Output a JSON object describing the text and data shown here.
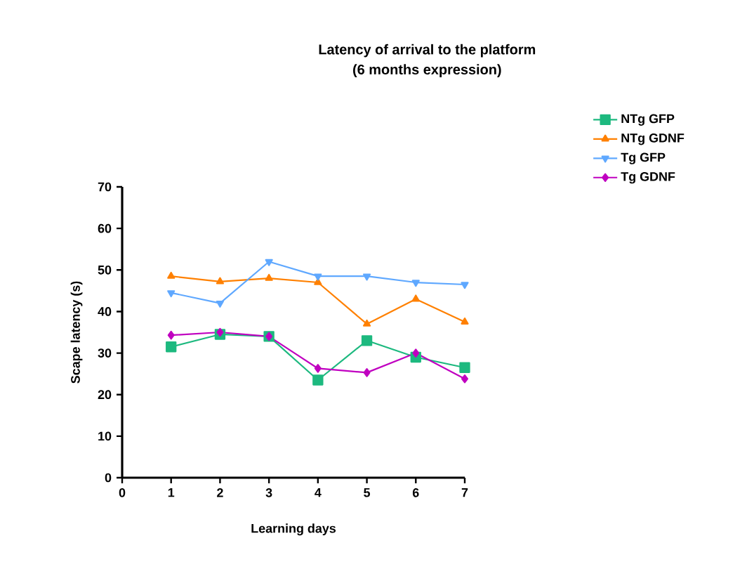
{
  "chart_data": {
    "type": "line",
    "title": "Latency of arrival to the platform",
    "subtitle": "(6 months expression)",
    "xlabel": "Learning days",
    "ylabel": "Scape latency (s)",
    "x": [
      1,
      2,
      3,
      4,
      5,
      6,
      7
    ],
    "xlim": [
      0,
      7
    ],
    "xticks": [
      0,
      1,
      2,
      3,
      4,
      5,
      6,
      7
    ],
    "ylim": [
      0,
      70
    ],
    "yticks": [
      0,
      10,
      20,
      30,
      40,
      50,
      60,
      70
    ],
    "grid": false,
    "legend": "top right",
    "line_style": "solid",
    "series": [
      {
        "name": "NTg GFP",
        "color": "#1db97f",
        "marker": "square",
        "values": [
          31.5,
          34.5,
          34,
          23.5,
          33,
          29,
          26.5
        ]
      },
      {
        "name": "NTg GDNF",
        "color": "#ff8000",
        "marker": "triangle",
        "values": [
          48.5,
          47.2,
          48,
          47,
          37,
          43,
          37.5
        ]
      },
      {
        "name": "Tg GFP",
        "color": "#5fa8ff",
        "marker": "triangle-down",
        "values": [
          44.5,
          42,
          52,
          48.5,
          48.5,
          47,
          46.5
        ]
      },
      {
        "name": "Tg GDNF",
        "color": "#c000c0",
        "marker": "diamond",
        "values": [
          34.3,
          35,
          34,
          26.3,
          25.3,
          30,
          23.8
        ]
      }
    ]
  }
}
